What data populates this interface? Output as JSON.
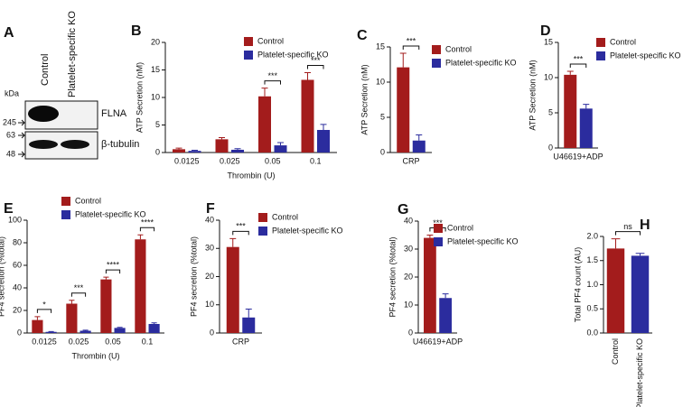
{
  "blot": {
    "panel": "A",
    "lanes": [
      "Control",
      "Platelet-specific KO"
    ],
    "unit": "kDa",
    "markers": [
      245,
      63,
      48
    ],
    "proteins": [
      "FLNA",
      "β-tubulin"
    ]
  },
  "chart_data": [
    {
      "type": "bar",
      "panel": "B",
      "ylabel": "ATP Secretion (nM)",
      "xlabel": "Thrombin (U)",
      "categories": [
        "0.0125",
        "0.025",
        "0.05",
        "0.1"
      ],
      "series": [
        {
          "name": "Control",
          "color": "#a31c1c",
          "values": [
            0.6,
            2.4,
            10.2,
            13.2
          ],
          "errors": [
            0.2,
            0.3,
            1.5,
            1.3
          ]
        },
        {
          "name": "Platelet-specific KO",
          "color": "#2b2c9e",
          "values": [
            0.3,
            0.5,
            1.3,
            4.1
          ],
          "errors": [
            0.1,
            0.2,
            0.5,
            1.0
          ]
        }
      ],
      "significance": [
        null,
        null,
        "***",
        "***"
      ],
      "ylim": [
        0,
        20
      ],
      "yticks": [
        0,
        5,
        10,
        15,
        20
      ]
    },
    {
      "type": "bar",
      "panel": "C",
      "ylabel": "ATP Secretion (nM)",
      "categories": [
        "CRP"
      ],
      "series": [
        {
          "name": "Control",
          "color": "#a31c1c",
          "values": [
            12.1
          ],
          "errors": [
            2.0
          ]
        },
        {
          "name": "Platelet-specific KO",
          "color": "#2b2c9e",
          "values": [
            1.7
          ],
          "errors": [
            0.8
          ]
        }
      ],
      "significance": [
        "***"
      ],
      "ylim": [
        0,
        15
      ],
      "yticks": [
        0,
        5,
        10,
        15
      ]
    },
    {
      "type": "bar",
      "panel": "D",
      "ylabel": "ATP Secretion (nM)",
      "categories": [
        "U46619+ADP"
      ],
      "series": [
        {
          "name": "Control",
          "color": "#a31c1c",
          "values": [
            10.4
          ],
          "errors": [
            0.5
          ]
        },
        {
          "name": "Platelet-specific KO",
          "color": "#2b2c9e",
          "values": [
            5.6
          ],
          "errors": [
            0.6
          ]
        }
      ],
      "significance": [
        "***"
      ],
      "ylim": [
        0,
        15
      ],
      "yticks": [
        0,
        5,
        10,
        15
      ]
    },
    {
      "type": "bar",
      "panel": "E",
      "ylabel": "PF4 secretion (%total)",
      "xlabel": "Thrombin (U)",
      "categories": [
        "0.0125",
        "0.025",
        "0.05",
        "0.1"
      ],
      "series": [
        {
          "name": "Control",
          "color": "#a31c1c",
          "values": [
            11.5,
            26,
            47.5,
            83
          ],
          "errors": [
            3,
            3,
            2,
            4
          ]
        },
        {
          "name": "Platelet-specific KO",
          "color": "#2b2c9e",
          "values": [
            1,
            2,
            4.5,
            8
          ],
          "errors": [
            0.3,
            0.5,
            0.5,
            1
          ]
        }
      ],
      "significance": [
        "*",
        "***",
        "****",
        "****"
      ],
      "ylim": [
        0,
        100
      ],
      "yticks": [
        0,
        20,
        40,
        60,
        80,
        100
      ]
    },
    {
      "type": "bar",
      "panel": "F",
      "ylabel": "PF4 secretion (%total)",
      "categories": [
        "CRP"
      ],
      "series": [
        {
          "name": "Control",
          "color": "#a31c1c",
          "values": [
            30.5
          ],
          "errors": [
            3
          ]
        },
        {
          "name": "Platelet-specific KO",
          "color": "#2b2c9e",
          "values": [
            5.5
          ],
          "errors": [
            3
          ]
        }
      ],
      "significance": [
        "***"
      ],
      "ylim": [
        0,
        40
      ],
      "yticks": [
        0,
        10,
        20,
        30,
        40
      ]
    },
    {
      "type": "bar",
      "panel": "G",
      "ylabel": "PF4 secretion (%total)",
      "categories": [
        "U46619+ADP"
      ],
      "series": [
        {
          "name": "Control",
          "color": "#a31c1c",
          "values": [
            34
          ],
          "errors": [
            1
          ]
        },
        {
          "name": "Platelet-specific KO",
          "color": "#2b2c9e",
          "values": [
            12.5
          ],
          "errors": [
            1.5
          ]
        }
      ],
      "significance": [
        "***"
      ],
      "ylim": [
        0,
        40
      ],
      "yticks": [
        0,
        10,
        20,
        30,
        40
      ]
    },
    {
      "type": "bar",
      "panel": "H",
      "ylabel": "Total PF4  count (AU)",
      "categories": [
        "Control",
        "Platelet-specific KO"
      ],
      "values": [
        1.75,
        1.6
      ],
      "errors": [
        0.2,
        0.05
      ],
      "colors": [
        "#a31c1c",
        "#2b2c9e"
      ],
      "significance": [
        "ns"
      ],
      "ylim": [
        0,
        2.0
      ],
      "yticks": [
        {
          "value": 0,
          "label": "0.0"
        },
        {
          "value": 0.5,
          "label": "0.5"
        },
        {
          "value": 1.0,
          "label": "1.0"
        },
        {
          "value": 1.5,
          "label": "1.5"
        },
        {
          "value": 2.0,
          "label": "2.0"
        }
      ]
    }
  ]
}
